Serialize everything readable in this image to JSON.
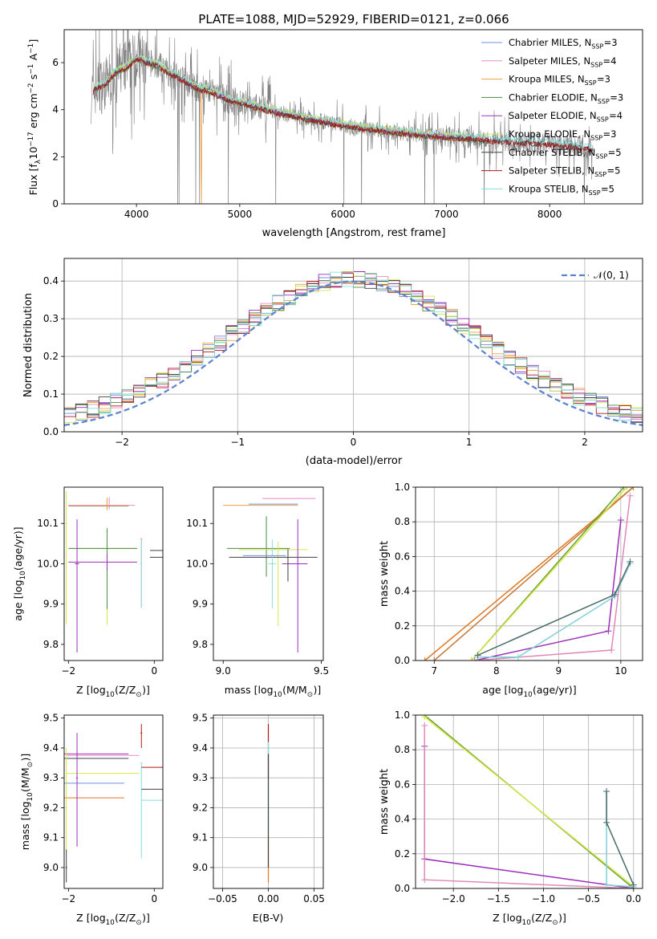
{
  "figure": {
    "title": "PLATE=1088, MJD=52929, FIBERID=0121, z=0.066"
  },
  "colors": {
    "chabrier_miles": "#6f8fe0",
    "salpeter_miles": "#e88ac8",
    "kroupa_miles": "#f0a040",
    "chabrier_elodie": "#4a8a4a",
    "salpeter_elodie": "#9b30b8",
    "kroupa_elodie": "#d4e84a",
    "chabrier_stelib": "#404040",
    "salpeter_stelib": "#b01818",
    "kroupa_stelib": "#80e0e0",
    "data": "#808080",
    "normal": "#5a82d0",
    "orange_line": "#e07820",
    "green_line": "#6aa030",
    "purple_line": "#9b30b8",
    "pink_line": "#e088b8",
    "cyan_line": "#80d0d8",
    "grid": "#b0b0b0"
  },
  "chart_data": [
    {
      "id": "spectrum",
      "type": "line",
      "xlabel": "wavelength [Angstrom, rest frame]",
      "ylabel_prefix": "Flux [f",
      "ylabel_sub": "λ",
      "ylabel_rest": "10",
      "ylabel_exp": "−17",
      "ylabel_tail": " erg cm",
      "ylabel_exp2": "−2",
      "ylabel_tail2": " s",
      "ylabel_exp3": "−1",
      "ylabel_tail3": " A",
      "ylabel_exp4": "−1",
      "ylabel_end": "]",
      "xlim": [
        3300,
        8900
      ],
      "ylim": [
        0,
        7.4
      ],
      "xticks": [
        4000,
        5000,
        6000,
        7000,
        8000
      ],
      "yticks": [
        0,
        2,
        4,
        6
      ],
      "legend_position": "top-right",
      "legend": [
        {
          "label": "Chabrier MILES, N",
          "sub": "SSP",
          "tail": "=3"
        },
        {
          "label": "Salpeter MILES, N",
          "sub": "SSP",
          "tail": "=4"
        },
        {
          "label": "Kroupa MILES, N",
          "sub": "SSP",
          "tail": "=3"
        },
        {
          "label": "Chabrier ELODIE, N",
          "sub": "SSP",
          "tail": "=3"
        },
        {
          "label": "Salpeter ELODIE, N",
          "sub": "SSP",
          "tail": "=4"
        },
        {
          "label": "Kroupa ELODIE, N",
          "sub": "SSP",
          "tail": "=3"
        },
        {
          "label": "Chabrier STELIB, N",
          "sub": "SSP",
          "tail": "=5"
        },
        {
          "label": "Salpeter STELIB, N",
          "sub": "SSP",
          "tail": "=5"
        },
        {
          "label": "Kroupa STELIB, N",
          "sub": "SSP",
          "tail": "=5"
        }
      ],
      "continuum": {
        "x": [
          3560,
          3600,
          3700,
          3800,
          3900,
          4000,
          4100,
          4200,
          4300,
          4400,
          4500,
          4600,
          4700,
          4800,
          4900,
          5000,
          5200,
          5400,
          5600,
          5800,
          6000,
          6200,
          6400,
          6600,
          6800,
          7000,
          7200,
          7400,
          7600,
          7800,
          8000,
          8200,
          8400
        ],
        "y": [
          4.6,
          4.9,
          5.1,
          5.6,
          5.8,
          6.2,
          6.0,
          5.9,
          5.6,
          5.4,
          5.1,
          4.9,
          4.8,
          4.6,
          4.4,
          4.3,
          4.05,
          3.85,
          3.65,
          3.5,
          3.35,
          3.2,
          3.1,
          3.0,
          2.9,
          2.85,
          2.8,
          2.7,
          2.65,
          2.6,
          2.55,
          2.45,
          2.35
        ]
      }
    },
    {
      "id": "residuals",
      "type": "line",
      "xlabel": "(data-model)/error",
      "ylabel": "Normed distribution",
      "xlim": [
        -2.5,
        2.5
      ],
      "ylim": [
        0,
        0.46
      ],
      "xticks": [
        -2,
        -1,
        0,
        1,
        2
      ],
      "yticks": [
        0.0,
        0.1,
        0.2,
        0.3,
        0.4
      ],
      "legend_position": "top-right",
      "legend_label": "𝒩(0, 1)",
      "bin_width": 0.1
    },
    {
      "id": "age_vs_Z",
      "type": "scatter",
      "xlabel": "Z [log",
      "xlabel_sub": "10",
      "xlabel_tail": "(Z/Z",
      "xlabel_sub2": "⊙",
      "xlabel_end": ")]",
      "ylabel": "age  [log",
      "ylabel_sub": "10",
      "ylabel_tail": "(age/yr)]",
      "xlim": [
        -2.1,
        0.2
      ],
      "ylim": [
        9.76,
        10.19
      ],
      "xticks": [
        -2,
        0
      ],
      "yticks": [
        9.8,
        9.9,
        10.0,
        10.1
      ]
    },
    {
      "id": "age_vs_mass",
      "type": "scatter",
      "xlabel": "mass [log",
      "xlabel_sub": "10",
      "xlabel_tail": "(M/M",
      "xlabel_sub2": "⊙",
      "xlabel_end": ")]",
      "xlim": [
        8.95,
        9.51
      ],
      "ylim": [
        9.76,
        10.19
      ],
      "xticks": [
        9.0,
        9.5
      ],
      "yticks": [
        9.8,
        9.9,
        10.0,
        10.1
      ]
    },
    {
      "id": "weight_vs_age",
      "type": "line",
      "xlabel": "age  [log",
      "xlabel_sub": "10",
      "xlabel_tail": "(age/yr)]",
      "ylabel": "mass weight",
      "xlim": [
        6.7,
        10.35
      ],
      "ylim": [
        0,
        1
      ],
      "xticks": [
        7,
        8,
        9,
        10
      ],
      "yticks": [
        0.0,
        0.2,
        0.4,
        0.6,
        0.8,
        1.0
      ],
      "grid": true
    },
    {
      "id": "mass_vs_Z",
      "type": "scatter",
      "xlabel": "Z [log",
      "xlabel_sub": "10",
      "xlabel_tail": "(Z/Z",
      "xlabel_sub2": "⊙",
      "xlabel_end": ")]",
      "ylabel": "mass [log",
      "ylabel_sub": "10",
      "ylabel_tail": "(M/M",
      "ylabel_sub2": "⊙",
      "ylabel_end": ")]",
      "xlim": [
        -2.1,
        0.2
      ],
      "ylim": [
        8.93,
        9.51
      ],
      "xticks": [
        -2,
        0
      ],
      "yticks": [
        9.0,
        9.1,
        9.2,
        9.3,
        9.4,
        9.5
      ]
    },
    {
      "id": "mass_vs_ebv",
      "type": "scatter",
      "xlabel": "E(B-V)",
      "xlim": [
        -0.06,
        0.06
      ],
      "ylim": [
        8.93,
        9.51
      ],
      "xticks": [
        -0.05,
        0.0,
        0.05
      ],
      "xtick_labels": [
        "−0.05",
        "0.00",
        "0.05"
      ],
      "yticks": [
        9.0,
        9.1,
        9.2,
        9.3,
        9.4,
        9.5
      ],
      "grid": true
    },
    {
      "id": "weight_vs_Z",
      "type": "line",
      "xlabel": "Z [log",
      "xlabel_sub": "10",
      "xlabel_tail": "(Z/Z",
      "xlabel_sub2": "⊙",
      "xlabel_end": ")]",
      "ylabel": "mass weight",
      "xlim": [
        -2.42,
        0.1
      ],
      "ylim": [
        0,
        1
      ],
      "xticks": [
        -2.0,
        -1.5,
        -1.0,
        -0.5,
        0.0
      ],
      "xtick_labels": [
        "−2.0",
        "−1.5",
        "−1.0",
        "−0.5",
        "0.0"
      ],
      "yticks": [
        0.0,
        0.2,
        0.4,
        0.6,
        0.8,
        1.0
      ],
      "grid": true
    }
  ]
}
